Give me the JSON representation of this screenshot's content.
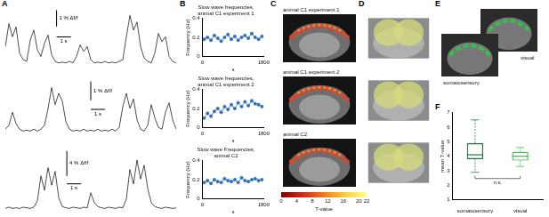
{
  "panels": [
    "A",
    "B",
    "C",
    "D",
    "E",
    "F"
  ],
  "chart_data": [
    {
      "type": "line",
      "color": "#000000",
      "tick_labels": false,
      "xlim": [
        0,
        12
      ],
      "ylim": [
        -0.3,
        3.5
      ],
      "x": [
        0,
        0.25,
        0.5,
        0.75,
        1,
        1.25,
        1.5,
        1.75,
        2,
        2.25,
        2.5,
        2.75,
        3,
        3.25,
        3.5,
        3.75,
        4,
        4.25,
        4.5,
        4.75,
        5,
        5.25,
        5.5,
        5.75,
        6,
        6.25,
        6.5,
        6.75,
        7,
        7.25,
        7.5,
        7.75,
        8,
        8.25,
        8.5,
        8.75,
        9,
        9.25,
        9.5,
        9.75,
        10,
        10.25,
        10.5,
        10.75,
        11,
        11.25,
        11.5,
        11.75,
        12
      ],
      "values": [
        1.2,
        2.6,
        1.8,
        2.4,
        0.8,
        0.4,
        0.3,
        1.6,
        2.2,
        1.0,
        0.6,
        1.4,
        1.9,
        0.7,
        0.3,
        0.2,
        0.25,
        0.2,
        0.3,
        0.2,
        0.6,
        1.3,
        0.9,
        1.2,
        0.4,
        0.2,
        0.25,
        0.2,
        0.3,
        0.2,
        0.25,
        0.2,
        0.3,
        0.4,
        1.8,
        3.1,
        2.2,
        2.7,
        1.2,
        0.5,
        0.3,
        0.2,
        0.8,
        2.0,
        1.5,
        1.8,
        0.6,
        0.3,
        0.2
      ],
      "scale_bar": {
        "x": 1,
        "x_label": "1 s",
        "y": 1,
        "y_label": "1 % Δf/f"
      }
    },
    {
      "type": "line",
      "color": "#000000",
      "tick_labels": false,
      "xlim": [
        0,
        12
      ],
      "ylim": [
        -0.3,
        3
      ],
      "x": [
        0,
        0.25,
        0.5,
        0.75,
        1,
        1.25,
        1.5,
        1.75,
        2,
        2.25,
        2.5,
        2.75,
        3,
        3.25,
        3.5,
        3.75,
        4,
        4.25,
        4.5,
        4.75,
        5,
        5.25,
        5.5,
        5.75,
        6,
        6.25,
        6.5,
        6.75,
        7,
        7.25,
        7.5,
        7.75,
        8,
        8.25,
        8.5,
        8.75,
        9,
        9.25,
        9.5,
        9.75,
        10,
        10.25,
        10.5,
        10.75,
        11,
        11.25,
        11.5,
        11.75,
        12
      ],
      "values": [
        0.3,
        0.5,
        1.2,
        0.6,
        0.3,
        0.2,
        0.25,
        0.2,
        0.3,
        0.2,
        0.3,
        0.5,
        1.4,
        2.5,
        1.6,
        2.2,
        1.8,
        0.7,
        0.3,
        0.2,
        0.25,
        0.2,
        0.3,
        0.2,
        0.25,
        0.2,
        0.3,
        0.2,
        0.25,
        0.2,
        0.3,
        0.2,
        0.4,
        1.5,
        2.2,
        1.4,
        1.9,
        0.8,
        0.3,
        0.2,
        0.5,
        1.6,
        0.9,
        0.4,
        0.3,
        1.2,
        1.7,
        0.8,
        0.3
      ],
      "scale_bar": {
        "x": 1,
        "x_label": "1 s",
        "y": 1,
        "y_label": "1 % Δf/f"
      }
    },
    {
      "type": "line",
      "color": "#000000",
      "tick_labels": false,
      "xlim": [
        0,
        12
      ],
      "ylim": [
        -0.5,
        10
      ],
      "x": [
        0,
        0.25,
        0.5,
        0.75,
        1,
        1.25,
        1.5,
        1.75,
        2,
        2.25,
        2.5,
        2.75,
        3,
        3.25,
        3.5,
        3.75,
        4,
        4.25,
        4.5,
        4.75,
        5,
        5.25,
        5.5,
        5.75,
        6,
        6.25,
        6.5,
        6.75,
        7,
        7.25,
        7.5,
        7.75,
        8,
        8.25,
        8.5,
        8.75,
        9,
        9.25,
        9.5,
        9.75,
        10,
        10.25,
        10.5,
        10.75,
        11,
        11.25,
        11.5,
        11.75,
        12
      ],
      "values": [
        0.3,
        0.5,
        0.3,
        0.4,
        0.3,
        0.5,
        0.4,
        0.3,
        0.5,
        1.5,
        5.5,
        3.2,
        6.8,
        4.0,
        6.2,
        2.0,
        0.6,
        0.4,
        0.3,
        0.5,
        0.4,
        0.3,
        0.5,
        0.4,
        2.8,
        1.2,
        0.6,
        0.4,
        0.3,
        0.5,
        0.4,
        0.3,
        0.5,
        0.4,
        1.8,
        6.5,
        4.2,
        8.0,
        5.0,
        7.2,
        3.5,
        1.2,
        0.6,
        0.4,
        0.3,
        0.5,
        0.4,
        0.3,
        0.4
      ],
      "scale_bar": {
        "x": 1,
        "x_label": "1 s",
        "y": 4,
        "y_label": "4 % Δf/f"
      }
    },
    {
      "type": "line",
      "title": [
        "Slow wave frequencies,",
        "animal C1 experiment 1"
      ],
      "x_label": "s",
      "y_label": "Frequency (Hz)",
      "color": "#2f6fba",
      "marker": "circle",
      "grid": false,
      "xlim": [
        0,
        1800
      ],
      "xticks": [
        0,
        1800
      ],
      "ylim": [
        0,
        0.4
      ],
      "yticks": [
        0,
        0.2,
        0.4
      ],
      "x": [
        50,
        150,
        250,
        350,
        450,
        550,
        650,
        750,
        850,
        950,
        1050,
        1150,
        1250,
        1350,
        1450,
        1550,
        1650,
        1750
      ],
      "values": [
        0.18,
        0.2,
        0.17,
        0.22,
        0.19,
        0.16,
        0.2,
        0.23,
        0.18,
        0.21,
        0.17,
        0.2,
        0.22,
        0.19,
        0.24,
        0.2,
        0.18,
        0.21
      ]
    },
    {
      "type": "line",
      "title": [
        "Slow wave frequencies,",
        "animal C1 experiment 2"
      ],
      "x_label": "s",
      "y_label": "Frequency (Hz)",
      "color": "#2f6fba",
      "marker": "circle",
      "grid": false,
      "xlim": [
        0,
        1800
      ],
      "xticks": [
        0,
        1800
      ],
      "ylim": [
        0,
        0.4
      ],
      "yticks": [
        0,
        0.2,
        0.4
      ],
      "x": [
        50,
        150,
        250,
        350,
        450,
        550,
        650,
        750,
        850,
        950,
        1050,
        1150,
        1250,
        1350,
        1450,
        1550,
        1650,
        1750
      ],
      "values": [
        0.1,
        0.15,
        0.12,
        0.17,
        0.2,
        0.16,
        0.22,
        0.19,
        0.24,
        0.2,
        0.26,
        0.22,
        0.27,
        0.23,
        0.28,
        0.25,
        0.24,
        0.22
      ]
    },
    {
      "type": "line",
      "title": [
        "Slow wave Frequencies,",
        "animal C2"
      ],
      "x_label": "s",
      "y_label": "Frequency (Hz)",
      "color": "#2f6fba",
      "marker": "circle",
      "grid": false,
      "xlim": [
        0,
        1800
      ],
      "xticks": [
        0,
        1800
      ],
      "ylim": [
        0,
        0.4
      ],
      "yticks": [
        0,
        0.2,
        0.4
      ],
      "x": [
        50,
        150,
        250,
        350,
        450,
        550,
        650,
        750,
        850,
        950,
        1050,
        1150,
        1250,
        1350,
        1450,
        1550,
        1650,
        1750
      ],
      "values": [
        0.17,
        0.19,
        0.16,
        0.2,
        0.18,
        0.17,
        0.21,
        0.19,
        0.18,
        0.2,
        0.17,
        0.22,
        0.19,
        0.18,
        0.2,
        0.21,
        0.19,
        0.2
      ]
    },
    {
      "type": "box",
      "y_label": "mean T-value",
      "categories": [
        "somatosensory",
        "visual"
      ],
      "colors": [
        "#1e7a3c",
        "#3dbb4f"
      ],
      "grid": false,
      "ylim": [
        1,
        7
      ],
      "yticks": [
        1,
        2,
        3,
        4,
        5,
        6,
        7
      ],
      "boxes": [
        {
          "min": 2.9,
          "q1": 3.8,
          "median": 4.1,
          "q3": 4.9,
          "max": 6.5
        },
        {
          "min": 3.3,
          "q1": 3.7,
          "median": 4.0,
          "q3": 4.3,
          "max": 4.6
        }
      ],
      "annotation": "n.s."
    }
  ],
  "images": {
    "C": {
      "labels": [
        "animal C1 experiment 1",
        "animal C1 experiment 2",
        "animal C2"
      ],
      "colorbar": {
        "range": [
          0,
          22
        ],
        "ticks": [
          0,
          4,
          8,
          12,
          16,
          20,
          22
        ],
        "label": "T-value"
      }
    },
    "E": {
      "labels": [
        "visual",
        "somatosensory"
      ]
    }
  }
}
